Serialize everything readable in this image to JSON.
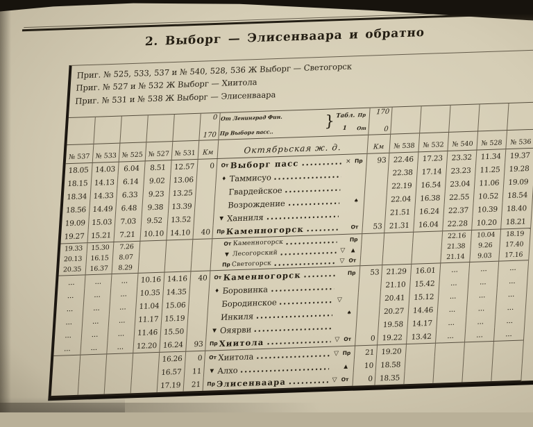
{
  "colors": {
    "paper": "#d5cdb5",
    "ink": "#241e13",
    "frame_line": "#1c1711",
    "grid_line": "#6b6250"
  },
  "page": {
    "title": "2. Выборг — Элисенваара и обратно",
    "subtitles": [
      "Приг. № 525, 533, 537 и № 540, 528, 536  Ж  Выборг — Светогорск",
      "Приг. № 527 и № 532 Ж  Выборг — Хиитола",
      "Приг. № 531  и № 538 Ж Выборг — Элисенваара"
    ]
  },
  "table": {
    "left_cols": [
      "№ 537",
      "№ 533",
      "№ 525",
      "№ 527",
      "№ 531"
    ],
    "right_cols": [
      "№ 538",
      "№ 532",
      "№ 540",
      "№ 528",
      "№ 536"
    ],
    "km_label": "Км",
    "railway_label": "Октябрьская ж. д.",
    "info": {
      "km_a": "0",
      "km_b": "170",
      "line1": "От Ленинград Фин.",
      "line2": "Пр Выборг пасс..",
      "brace": "}",
      "tbl_word": "Табл.",
      "tbl_no": "1",
      "mark1": "Пр",
      "mark2": "От",
      "km_c": "170",
      "km_d": "0"
    },
    "rows": [
      {
        "km_l": "0",
        "mark_l": "От",
        "name": "Выборг пасс",
        "sym": "×",
        "mark_r": "Пр",
        "km_r": "93",
        "bold": true,
        "l": [
          "18.05",
          "14.03",
          "6.04",
          "8.51",
          "12.57"
        ],
        "r": [
          "22.46",
          "17.23",
          "23.32",
          "11.34",
          "19.37"
        ]
      },
      {
        "mark_l": "♦",
        "name": "Таммисуо",
        "l": [
          "18.15",
          "14.13",
          "6.14",
          "9.02",
          "13.06"
        ],
        "r": [
          "22.38",
          "17.14",
          "23.23",
          "11.25",
          "19.28"
        ]
      },
      {
        "name": "Гвардейское",
        "l": [
          "18.34",
          "14.33",
          "6.33",
          "9.23",
          "13.25"
        ],
        "r": [
          "22.19",
          "16.54",
          "23.04",
          "11.06",
          "19.09"
        ]
      },
      {
        "name": "Возрождение",
        "mark_r": "♠",
        "l": [
          "18.56",
          "14.49",
          "6.48",
          "9.38",
          "13.39"
        ],
        "r": [
          "22.04",
          "16.38",
          "22.55",
          "10.52",
          "18.54"
        ]
      },
      {
        "mark_l": "▼",
        "name": "Ханниля",
        "l": [
          "19.09",
          "15.03",
          "7.03",
          "9.52",
          "13.52"
        ],
        "r": [
          "21.51",
          "16.24",
          "22.37",
          "10.39",
          "18.40"
        ]
      },
      {
        "km_l": "40",
        "mark_l": "Пр",
        "name": "Каменногорск",
        "bold": true,
        "mark_r": "От",
        "km_r": "53",
        "sep": true,
        "l": [
          "19.27",
          "15.21",
          "7.21",
          "10.10",
          "14.10"
        ],
        "r": [
          "21.31",
          "16.04",
          "22.28",
          "10.20",
          "18.21"
        ]
      },
      {
        "mark_l": "От",
        "name": "Каменногорск",
        "small": true,
        "mark_r": "Пр",
        "l": [
          "19.33",
          "15.30",
          "7.26",
          "",
          ""
        ],
        "r": [
          "",
          "",
          "22.16",
          "10.04",
          "18.19"
        ]
      },
      {
        "mark_l": "▼",
        "name": "Лесогорский",
        "sym": "▽",
        "small": true,
        "mark_r": "▲",
        "l": [
          "20.13",
          "16.15",
          "8.07",
          "",
          ""
        ],
        "r": [
          "",
          "",
          "21.38",
          "9.26",
          "17.40"
        ]
      },
      {
        "mark_l": "Пр",
        "name": "Светогорск",
        "sym": "▽",
        "small": true,
        "mark_r": "От",
        "sep": true,
        "l": [
          "20.35",
          "16.37",
          "8.29",
          "",
          ""
        ],
        "r": [
          "",
          "",
          "21.14",
          "9.03",
          "17.16"
        ]
      },
      {
        "km_l": "40",
        "mark_l": "От",
        "name": "Каменногорск",
        "bold": true,
        "mark_r": "Пр",
        "km_r": "53",
        "l": [
          "...",
          "...",
          "...",
          "10.16",
          "14.16"
        ],
        "r": [
          "21.29",
          "16.01",
          "...",
          "...",
          "..."
        ]
      },
      {
        "mark_l": "♦",
        "name": "Боровинка",
        "l": [
          "...",
          "...",
          "...",
          "10.35",
          "14.35"
        ],
        "r": [
          "21.10",
          "15.42",
          "...",
          "...",
          "..."
        ]
      },
      {
        "name": "Бородинское",
        "sym": "▽",
        "l": [
          "...",
          "...",
          "...",
          "11.04",
          "15.06"
        ],
        "r": [
          "20.41",
          "15.12",
          "...",
          "...",
          "..."
        ]
      },
      {
        "name": "Инкиля",
        "mark_r": "♠",
        "l": [
          "...",
          "...",
          "...",
          "11.17",
          "15.19"
        ],
        "r": [
          "20.27",
          "14.46",
          "...",
          "...",
          "..."
        ]
      },
      {
        "mark_l": "▼",
        "name": "Ояярви",
        "l": [
          "...",
          "...",
          "...",
          "11.46",
          "15.50"
        ],
        "r": [
          "19.58",
          "14.17",
          "...",
          "...",
          "..."
        ]
      },
      {
        "km_l": "93",
        "mark_l": "Пр",
        "name": "Хиитола",
        "bold": true,
        "sym": "▽",
        "mark_r": "От",
        "km_r": "0",
        "sep": true,
        "l": [
          "...",
          "...",
          "...",
          "12.20",
          "16.24"
        ],
        "r": [
          "19.22",
          "13.42",
          "...",
          "...",
          "..."
        ]
      },
      {
        "km_l": "0",
        "mark_l": "От",
        "name": "Хиитола",
        "sym": "▽",
        "mark_r": "Пр",
        "km_r": "21",
        "l": [
          "",
          "",
          "",
          "",
          "16.26"
        ],
        "r": [
          "19.20",
          "",
          "",
          "",
          ""
        ]
      },
      {
        "km_l": "11",
        "mark_l": "▼",
        "name": "Алхо",
        "mark_r": "▲",
        "km_r": "10",
        "l": [
          "",
          "",
          "",
          "",
          "16.57"
        ],
        "r": [
          "18.58",
          "",
          "",
          "",
          ""
        ]
      },
      {
        "km_l": "21",
        "mark_l": "Пр",
        "name": "Элисенваара",
        "bold": true,
        "sym": "▽",
        "mark_r": "От",
        "km_r": "0",
        "l": [
          "",
          "",
          "",
          "",
          "17.19"
        ],
        "r": [
          "18.35",
          "",
          "",
          "",
          ""
        ]
      }
    ]
  }
}
